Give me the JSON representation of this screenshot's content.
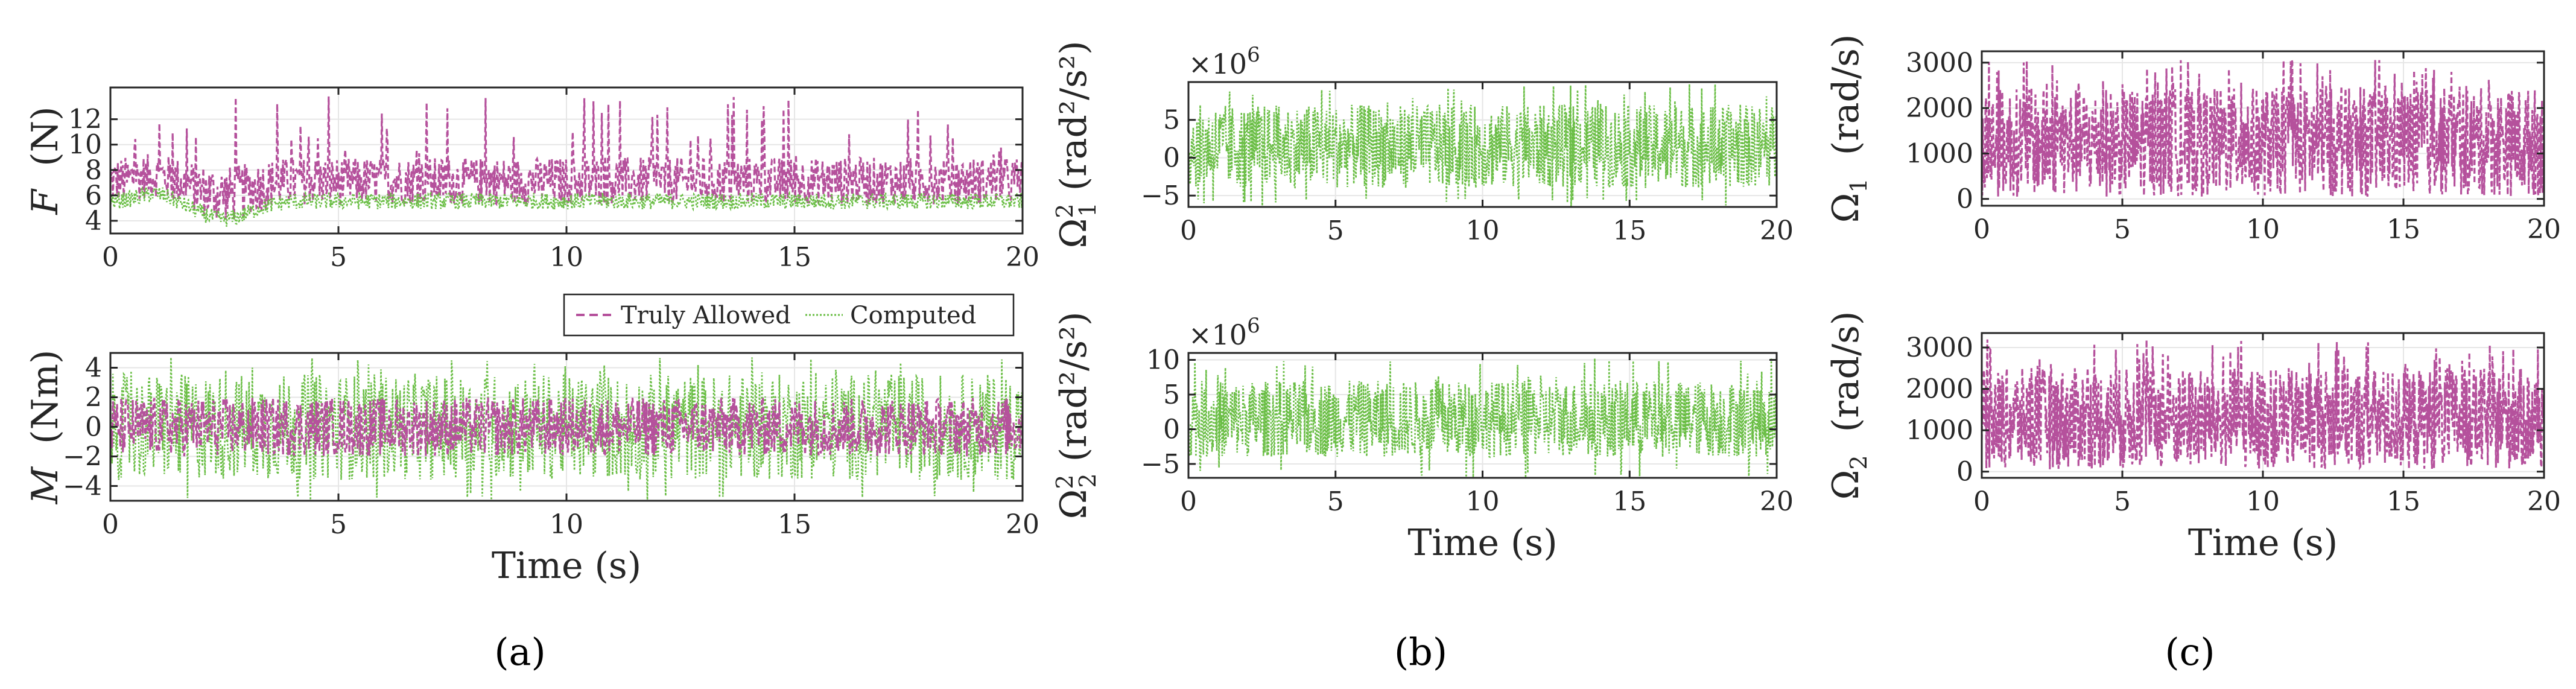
{
  "colors": {
    "magenta": "#b5519c",
    "green": "#6abe45",
    "axis": "#262626"
  },
  "chart_data": [
    {
      "id": "F",
      "type": "line",
      "panel": "a",
      "ylabel": "F (N)",
      "ylabel_var": "F",
      "ylabel_unit": "(N)",
      "xlabel": "",
      "xlim": [
        0,
        20
      ],
      "ylim": [
        3,
        14.5
      ],
      "xticks": [
        "0",
        "5",
        "10",
        "15",
        "20"
      ],
      "yticks": [
        "4",
        "6",
        "8",
        "10",
        "12"
      ],
      "series": [
        {
          "name": "Truly Allowed",
          "color": "#b5519c",
          "style": "dashed",
          "base": 6.2,
          "band_low": 5.3,
          "band_high": 9.0,
          "spike_max": 13.8
        },
        {
          "name": "Computed",
          "color": "#6abe45",
          "style": "dotted",
          "base": 5.6,
          "band_low": 4.9,
          "band_high": 6.2
        }
      ]
    },
    {
      "id": "M",
      "type": "line",
      "panel": "a",
      "ylabel": "M (Nm)",
      "ylabel_var": "M",
      "ylabel_unit": "(Nm)",
      "xlabel": "Time (s)",
      "xlim": [
        0,
        20
      ],
      "ylim": [
        -5,
        5
      ],
      "xticks": [
        "0",
        "5",
        "10",
        "15",
        "20"
      ],
      "yticks": [
        "-4",
        "-2",
        "0",
        "2",
        "4"
      ],
      "legend": [
        "Truly Allowed",
        "Computed"
      ],
      "series": [
        {
          "name": "Computed",
          "color": "#6abe45",
          "style": "dotted",
          "band_low": -3.6,
          "band_high": 3.6,
          "spike_max": 4.7
        },
        {
          "name": "Truly Allowed",
          "color": "#b5519c",
          "style": "dashed",
          "band_low": -2.0,
          "band_high": 2.0
        }
      ]
    },
    {
      "id": "Om1sq",
      "type": "line",
      "panel": "b",
      "ylabel": "Ω₁² (rad²/s²)",
      "ylabel_var": "Ω",
      "ylabel_sub": "1",
      "ylabel_sup": "2",
      "ylabel_unit": "(rad²/s²)",
      "xlabel": "",
      "xlim": [
        0,
        20
      ],
      "ylim": [
        -6.5,
        10
      ],
      "exponent": "×10",
      "exponent_power": "6",
      "xticks": [
        "0",
        "5",
        "10",
        "15",
        "20"
      ],
      "yticks": [
        "-5",
        "0",
        "5"
      ],
      "series": [
        {
          "name": "Computed",
          "color": "#6abe45",
          "style": "dotted",
          "band_low": -4.0,
          "band_high": 7.0,
          "spike_max": 9.8
        }
      ]
    },
    {
      "id": "Om2sq",
      "type": "line",
      "panel": "b",
      "ylabel": "Ω₂² (rad²/s²)",
      "ylabel_var": "Ω",
      "ylabel_sub": "2",
      "ylabel_sup": "2",
      "ylabel_unit": "(rad²/s²)",
      "xlabel": "Time (s)",
      "xlim": [
        0,
        20
      ],
      "ylim": [
        -7,
        11
      ],
      "exponent": "×10",
      "exponent_power": "6",
      "xticks": [
        "0",
        "5",
        "10",
        "15",
        "20"
      ],
      "yticks": [
        "-5",
        "0",
        "5",
        "10"
      ],
      "series": [
        {
          "name": "Computed",
          "color": "#6abe45",
          "style": "dotted",
          "band_low": -4.0,
          "band_high": 7.0,
          "spike_max": 10.4
        }
      ]
    },
    {
      "id": "Om1",
      "type": "line",
      "panel": "c",
      "ylabel": "Ω₁ (rad/s)",
      "ylabel_var": "Ω",
      "ylabel_sub": "1",
      "ylabel_unit": "(rad/s)",
      "xlabel": "",
      "xlim": [
        0,
        20
      ],
      "ylim": [
        -150,
        3250
      ],
      "xticks": [
        "0",
        "5",
        "10",
        "15",
        "20"
      ],
      "yticks": [
        "0",
        "1000",
        "2000",
        "3000"
      ],
      "series": [
        {
          "name": "Truly Allowed",
          "color": "#b5519c",
          "style": "dashed",
          "band_low": 50,
          "band_high": 2450,
          "spike_max": 3100
        }
      ]
    },
    {
      "id": "Om2",
      "type": "line",
      "panel": "c",
      "ylabel": "Ω₂ (rad/s)",
      "ylabel_var": "Ω",
      "ylabel_sub": "2",
      "ylabel_unit": "(rad/s)",
      "xlabel": "Time (s)",
      "xlim": [
        0,
        20
      ],
      "ylim": [
        -150,
        3350
      ],
      "xticks": [
        "0",
        "5",
        "10",
        "15",
        "20"
      ],
      "yticks": [
        "0",
        "1000",
        "2000",
        "3000"
      ],
      "series": [
        {
          "name": "Truly Allowed",
          "color": "#b5519c",
          "style": "dashed",
          "band_low": 50,
          "band_high": 2500,
          "spike_max": 3200
        }
      ]
    }
  ],
  "captions": {
    "a": "(a)",
    "b": "(b)",
    "c": "(c)"
  },
  "legend": {
    "items": [
      "Truly Allowed",
      "Computed"
    ]
  }
}
